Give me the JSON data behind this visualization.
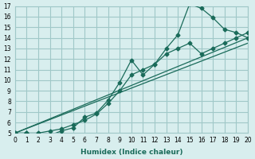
{
  "xlabel": "Humidex (Indice chaleur)",
  "bg_color": "#d8eeee",
  "grid_color": "#a0c8c8",
  "line_color": "#1a6b5a",
  "xlim": [
    0,
    20
  ],
  "ylim": [
    5,
    17
  ],
  "xticks": [
    0,
    1,
    2,
    3,
    4,
    5,
    6,
    7,
    8,
    9,
    10,
    11,
    12,
    13,
    14,
    15,
    16,
    17,
    18,
    19,
    20
  ],
  "yticks": [
    5,
    6,
    7,
    8,
    9,
    10,
    11,
    12,
    13,
    14,
    15,
    16,
    17
  ],
  "series": [
    {
      "x": [
        0,
        1,
        2,
        3,
        4,
        5,
        6,
        7,
        8,
        9,
        10,
        11,
        12,
        13,
        14,
        15,
        16,
        17,
        18,
        19,
        20
      ],
      "y": [
        5,
        5,
        4.7,
        4.8,
        5.2,
        5.5,
        6.5,
        6.9,
        8.1,
        9.8,
        11.9,
        10.5,
        11.5,
        13.0,
        14.3,
        17.2,
        16.8,
        15.9,
        14.8,
        14.5,
        14.0
      ]
    },
    {
      "x": [
        0,
        1,
        2,
        3,
        4,
        5,
        6,
        7,
        8,
        9,
        10,
        11,
        12,
        13,
        14,
        15,
        16,
        17,
        18,
        19,
        20
      ],
      "y": [
        5,
        5,
        5.0,
        5.2,
        5.4,
        5.8,
        6.2,
        6.8,
        7.8,
        9.0,
        10.5,
        11.0,
        11.5,
        12.5,
        13.0,
        13.5,
        12.5,
        13.0,
        13.5,
        14.0,
        14.5
      ]
    },
    {
      "x": [
        0,
        20
      ],
      "y": [
        5,
        14.0
      ]
    },
    {
      "x": [
        0,
        20
      ],
      "y": [
        5,
        13.5
      ]
    }
  ]
}
